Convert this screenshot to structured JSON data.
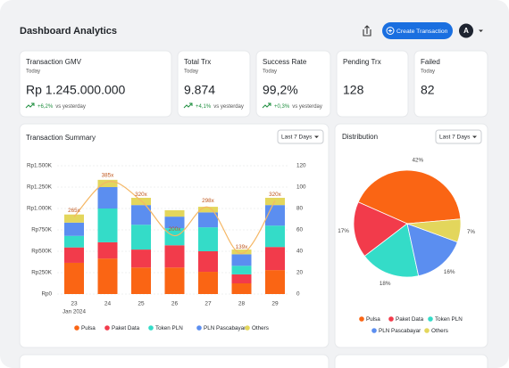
{
  "header": {
    "title": "Dashboard Analytics",
    "button": "Create Transaction",
    "avatar": "A"
  },
  "cards": [
    {
      "title": "Transaction GMV",
      "subtitle": "Today",
      "value": "Rp 1.245.000.000",
      "change": "+6,2%",
      "note": "vs yesterday"
    },
    {
      "title": "Total Trx",
      "subtitle": "Today",
      "value": "9.874",
      "change": "+4,1%",
      "note": "vs yesterday"
    },
    {
      "title": "Success Rate",
      "subtitle": "Today",
      "value": "99,2%",
      "change": "+0,3%",
      "note": "vs yesterday"
    },
    {
      "title": "Pending Trx",
      "value": "128"
    },
    {
      "title": "Failed",
      "subtitle": "Today",
      "value": "82"
    }
  ],
  "chart_data": [
    {
      "type": "bar",
      "stacked": true,
      "title": "Transaction Summary",
      "filter": "Last 7 Days",
      "categories": [
        "23",
        "24",
        "25",
        "26",
        "27",
        "28",
        "29"
      ],
      "x_sublabel": "Jan 2024",
      "ylim": [
        0,
        1500
      ],
      "yticks": [
        {
          "value": 0,
          "label": "Rp0"
        },
        {
          "value": 250,
          "label": "Rp250K"
        },
        {
          "value": 500,
          "label": "Rp500K"
        },
        {
          "value": 750,
          "label": "Rp750K"
        },
        {
          "value": 1000,
          "label": "Rp1.000K"
        },
        {
          "value": 1250,
          "label": "Rp1.250K"
        },
        {
          "value": 1500,
          "label": "Rp1.500K"
        }
      ],
      "y2lim": [
        0,
        120
      ],
      "y2ticks": [
        0,
        20,
        40,
        60,
        80,
        100,
        120
      ],
      "y3lim": [
        0,
        440
      ],
      "grid": true,
      "legend": "bottom",
      "series": [
        {
          "name": "Pulsa",
          "color": "#fa6514",
          "values": [
            365,
            415,
            310,
            310,
            260,
            125,
            280
          ]
        },
        {
          "name": "Paket Data",
          "color": "#f23b4b",
          "values": [
            180,
            190,
            210,
            260,
            240,
            105,
            270
          ]
        },
        {
          "name": "Token PLN",
          "color": "#34dcc8",
          "values": [
            135,
            395,
            290,
            200,
            280,
            100,
            250
          ]
        },
        {
          "name": "PLN Pascabayar",
          "color": "#5b8ef0",
          "values": [
            155,
            250,
            230,
            135,
            175,
            135,
            240
          ]
        },
        {
          "name": "Others",
          "color": "#e3d65c",
          "values": [
            95,
            85,
            85,
            75,
            65,
            55,
            85
          ]
        },
        {
          "type": "line",
          "axis": "y3",
          "color": "#f5b765",
          "values": [
            265,
            385,
            320,
            200,
            298,
            139,
            320
          ],
          "value_labels": [
            "265x",
            "385x",
            "320x",
            "200x",
            "298x",
            "139x",
            "320x"
          ]
        }
      ]
    },
    {
      "type": "pie",
      "title": "Distribution",
      "filter": "Last 7 Days",
      "categories": [
        "Pulsa",
        "Paket Data",
        "Token PLN",
        "PLN Pascabayar",
        "Others"
      ],
      "values": [
        42,
        17,
        18,
        16,
        7
      ],
      "value_labels": [
        "42%",
        "17%",
        "18%",
        "16%",
        "7%"
      ],
      "colors": [
        "#fa6514",
        "#f23b4b",
        "#34dcc8",
        "#5b8ef0",
        "#e3d65c"
      ],
      "legend": "bottom"
    }
  ]
}
